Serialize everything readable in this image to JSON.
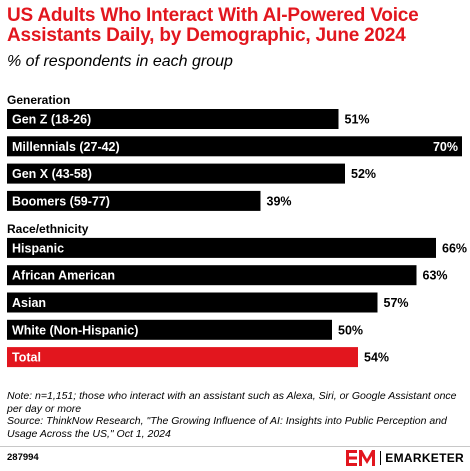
{
  "title": "US Adults Who Interact With AI-Powered Voice Assistants Daily, by Demographic, June 2024",
  "subtitle": "% of respondents in each group",
  "chart_data": {
    "type": "bar",
    "orientation": "horizontal",
    "value_suffix": "%",
    "xlim": [
      0,
      70
    ],
    "grid": false,
    "groups": [
      {
        "label": "Generation",
        "bars": [
          {
            "category": "Gen Z (18-26)",
            "value": 51
          },
          {
            "category": "Millennials (27-42)",
            "value": 70
          },
          {
            "category": "Gen X (43-58)",
            "value": 52
          },
          {
            "category": "Boomers (59-77)",
            "value": 39
          }
        ]
      },
      {
        "label": "Race/ethnicity",
        "bars": [
          {
            "category": "Hispanic",
            "value": 66
          },
          {
            "category": "African American",
            "value": 63
          },
          {
            "category": "Asian",
            "value": 57
          },
          {
            "category": "White (Non-Hispanic)",
            "value": 50
          },
          {
            "category": "Total",
            "value": 54,
            "highlight": true
          }
        ]
      }
    ],
    "colors": {
      "bar": "#000000",
      "highlight": "#e2161e",
      "bar_label": "#ffffff"
    }
  },
  "notes": {
    "note": "Note: n=1,151; those who interact with an assistant such as Alexa, Siri, or Google Assistant once per day or more",
    "source": "Source: ThinkNow Research, \"The Growing Influence of AI: Insights into Public Perception and Usage Across the US,\" Oct 1, 2024"
  },
  "footer": {
    "chart_id": "287994",
    "brand_name": "EMARKETER",
    "brand_logo": "EM"
  }
}
